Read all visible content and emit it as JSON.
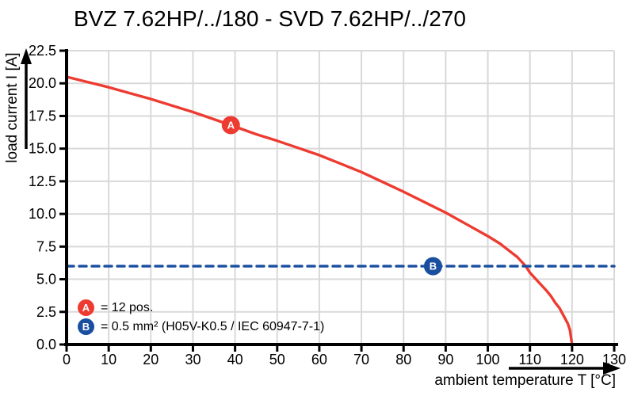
{
  "title": "BVZ 7.62HP/../180 - SVD 7.62HP/../270",
  "chart_data": {
    "type": "line",
    "title": "BVZ 7.62HP/../180 - SVD 7.62HP/../270",
    "xlabel": "ambient temperature T [°C]",
    "ylabel": "load current I [A]",
    "xlim": [
      0,
      130
    ],
    "ylim": [
      0,
      22.5
    ],
    "grid": true,
    "gridline_color": "#d9d9d9",
    "axis_color": "#000000",
    "x_ticks": [
      0,
      10,
      20,
      30,
      40,
      50,
      60,
      70,
      80,
      90,
      100,
      110,
      120,
      130
    ],
    "x_tick_labels": [
      "0",
      "10",
      "20",
      "30",
      "40",
      "50",
      "60",
      "70",
      "80",
      "90",
      "100",
      "110",
      "120",
      "130"
    ],
    "y_ticks": [
      0,
      2.5,
      5,
      7.5,
      10,
      12.5,
      15,
      17.5,
      20,
      22.5
    ],
    "y_tick_labels": [
      "0.0",
      "2.5",
      "5.0",
      "7.5",
      "10.0",
      "12.5",
      "15.0",
      "17.5",
      "20.0",
      "22.5"
    ],
    "legend_position": "bottom-left-inside",
    "series": [
      {
        "name": "A",
        "label": "= 12 pos.",
        "color": "#ee3b31",
        "style": "solid",
        "marker": {
          "letter": "A",
          "x": 39,
          "y": 16.8
        },
        "points": [
          [
            0,
            20.5
          ],
          [
            5,
            20.1
          ],
          [
            10,
            19.7
          ],
          [
            15,
            19.25
          ],
          [
            20,
            18.8
          ],
          [
            25,
            18.3
          ],
          [
            30,
            17.8
          ],
          [
            35,
            17.25
          ],
          [
            39,
            16.8
          ],
          [
            45,
            16.1
          ],
          [
            50,
            15.6
          ],
          [
            55,
            15.05
          ],
          [
            60,
            14.5
          ],
          [
            65,
            13.85
          ],
          [
            70,
            13.2
          ],
          [
            75,
            12.45
          ],
          [
            80,
            11.7
          ],
          [
            85,
            10.9
          ],
          [
            90,
            10.1
          ],
          [
            95,
            9.2
          ],
          [
            100,
            8.3
          ],
          [
            103,
            7.7
          ],
          [
            105,
            7.2
          ],
          [
            107,
            6.7
          ],
          [
            109,
            6.0
          ],
          [
            110,
            5.5
          ],
          [
            112,
            4.8
          ],
          [
            114,
            4.1
          ],
          [
            115,
            3.7
          ],
          [
            116,
            3.2
          ],
          [
            117,
            2.8
          ],
          [
            118,
            2.2
          ],
          [
            119,
            1.6
          ],
          [
            119.5,
            1.1
          ],
          [
            120,
            0
          ]
        ]
      },
      {
        "name": "B",
        "label": "= 0.5 mm² (H05V-K0.5 / IEC 60947-7-1)",
        "color": "#1a4fa0",
        "style": "dashed",
        "marker": {
          "letter": "B",
          "x": 87,
          "y": 6
        },
        "points": [
          [
            0,
            6
          ],
          [
            130,
            6
          ]
        ]
      }
    ]
  }
}
